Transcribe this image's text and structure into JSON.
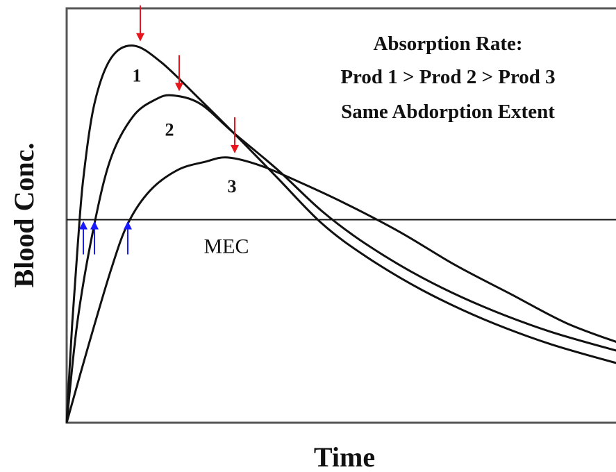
{
  "chart_data": {
    "type": "line",
    "xlabel": "Time",
    "ylabel": "Blood Conc.",
    "annotation_lines": [
      "Absorption Rate:",
      "Prod 1 > Prod 2 > Prod 3",
      "Same Abdorption Extent"
    ],
    "threshold": {
      "label": "MEC",
      "y": 0.49
    },
    "series": [
      {
        "name": "1",
        "peak": {
          "x": 0.12,
          "y": 0.91
        },
        "onset": {
          "x": 0.03
        },
        "points": [
          [
            0.0,
            0.0
          ],
          [
            0.01,
            0.24
          ],
          [
            0.02,
            0.43
          ],
          [
            0.03,
            0.59
          ],
          [
            0.05,
            0.77
          ],
          [
            0.08,
            0.88
          ],
          [
            0.12,
            0.91
          ],
          [
            0.17,
            0.87
          ],
          [
            0.24,
            0.78
          ],
          [
            0.3,
            0.7
          ],
          [
            0.38,
            0.59
          ],
          [
            0.46,
            0.48
          ],
          [
            0.54,
            0.4
          ],
          [
            0.64,
            0.32
          ],
          [
            0.75,
            0.25
          ],
          [
            0.87,
            0.19
          ],
          [
            1.0,
            0.14
          ]
        ]
      },
      {
        "name": "2",
        "peak": {
          "x": 0.19,
          "y": 0.79
        },
        "onset": {
          "x": 0.05
        },
        "points": [
          [
            0.0,
            0.0
          ],
          [
            0.02,
            0.25
          ],
          [
            0.05,
            0.48
          ],
          [
            0.08,
            0.64
          ],
          [
            0.12,
            0.74
          ],
          [
            0.16,
            0.78
          ],
          [
            0.19,
            0.79
          ],
          [
            0.24,
            0.77
          ],
          [
            0.3,
            0.7
          ],
          [
            0.38,
            0.61
          ],
          [
            0.46,
            0.51
          ],
          [
            0.54,
            0.43
          ],
          [
            0.64,
            0.35
          ],
          [
            0.75,
            0.28
          ],
          [
            0.87,
            0.22
          ],
          [
            1.0,
            0.17
          ]
        ]
      },
      {
        "name": "3",
        "peak": {
          "x": 0.29,
          "y": 0.64
        },
        "onset": {
          "x": 0.11
        },
        "points": [
          [
            0.0,
            0.0
          ],
          [
            0.04,
            0.19
          ],
          [
            0.08,
            0.37
          ],
          [
            0.11,
            0.48
          ],
          [
            0.15,
            0.56
          ],
          [
            0.2,
            0.61
          ],
          [
            0.25,
            0.63
          ],
          [
            0.29,
            0.64
          ],
          [
            0.35,
            0.62
          ],
          [
            0.42,
            0.58
          ],
          [
            0.5,
            0.53
          ],
          [
            0.6,
            0.46
          ],
          [
            0.7,
            0.38
          ],
          [
            0.8,
            0.31
          ],
          [
            0.9,
            0.24
          ],
          [
            1.0,
            0.19
          ]
        ]
      }
    ],
    "xlim": [
      0,
      1
    ],
    "ylim": [
      0,
      1
    ],
    "ticks": "none",
    "grid": false,
    "colors": {
      "curve": "#111111",
      "threshold": "#111111",
      "peak_arrow": "#e8141b",
      "onset_arrow": "#1a1aff",
      "frame": "#555555"
    }
  }
}
